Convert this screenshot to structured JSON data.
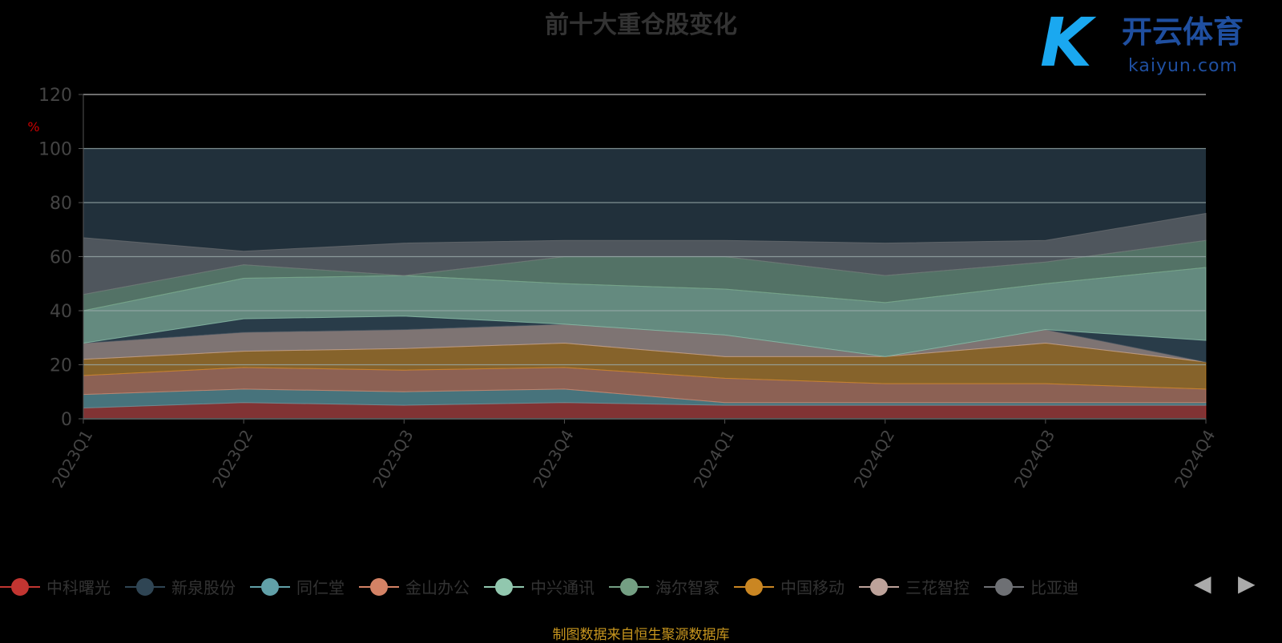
{
  "title": "前十大重仓股变化",
  "footer": "制图数据来自恒生聚源数据库",
  "watermark": {
    "cn": "开云体育",
    "en": "kaiyun.com"
  },
  "legend_nav": {
    "prev": "◀",
    "next": "▶"
  },
  "chart_data": {
    "type": "area",
    "stacked": true,
    "title": "前十大重仓股变化",
    "ylabel": "%",
    "ylim": [
      0,
      120
    ],
    "yticks": [
      0,
      20,
      40,
      60,
      80,
      100,
      120
    ],
    "categories": [
      "2023Q1",
      "2023Q2",
      "2023Q3",
      "2023Q4",
      "2024Q1",
      "2024Q2",
      "2024Q3",
      "2024Q4"
    ],
    "legend_position": "bottom",
    "series": [
      {
        "name": "中科曙光",
        "color": "#c23531",
        "values": [
          4,
          6,
          5,
          6,
          5,
          5,
          5,
          5
        ]
      },
      {
        "name": "同仁堂",
        "color": "#61a0a8",
        "values": [
          5,
          5,
          5,
          5,
          1,
          1,
          1,
          1
        ]
      },
      {
        "name": "金山办公",
        "color": "#d48265",
        "values": [
          7,
          8,
          8,
          8,
          9,
          7,
          7,
          5
        ]
      },
      {
        "name": "中国移动",
        "color": "#ca8622",
        "values": [
          6,
          6,
          8,
          9,
          8,
          10,
          15,
          10
        ]
      },
      {
        "name": "三花智控",
        "color": "#bda29a",
        "values": [
          6,
          7,
          7,
          7,
          8,
          0,
          5,
          0
        ]
      },
      {
        "name": "新泉股份",
        "color": "#2f4554",
        "values": [
          0,
          5,
          5,
          0,
          0,
          0,
          0,
          8
        ]
      },
      {
        "name": "中兴通讯",
        "color": "#91c7ae",
        "values": [
          12,
          15,
          15,
          15,
          17,
          20,
          17,
          27
        ]
      },
      {
        "name": "海尔智家",
        "color": "#749f83",
        "values": [
          6,
          5,
          0,
          10,
          12,
          10,
          8,
          10
        ]
      },
      {
        "name": "比亚迪",
        "color": "#6e7074",
        "values": [
          21,
          5,
          12,
          6,
          6,
          12,
          8,
          10
        ]
      }
    ],
    "legend_order": [
      "中科曙光",
      "新泉股份",
      "同仁堂",
      "金山办公",
      "中兴通讯",
      "海尔智家",
      "中国移动",
      "三花智控",
      "比亚迪"
    ]
  }
}
